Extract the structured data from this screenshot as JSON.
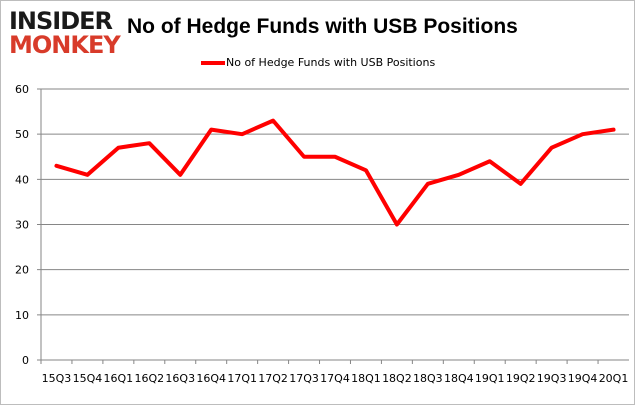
{
  "logo": {
    "line1": "INSIDER",
    "line2": "MONKEY"
  },
  "chart_data": {
    "type": "line",
    "title": "No of Hedge Funds with USB Positions",
    "categories": [
      "15Q3",
      "15Q4",
      "16Q1",
      "16Q2",
      "16Q3",
      "16Q4",
      "17Q1",
      "17Q2",
      "17Q3",
      "17Q4",
      "18Q1",
      "18Q2",
      "18Q3",
      "18Q4",
      "19Q1",
      "19Q2",
      "19Q3",
      "19Q4",
      "20Q1"
    ],
    "series": [
      {
        "name": "No of Hedge Funds with USB Positions",
        "color": "#ff0000",
        "values": [
          43,
          41,
          47,
          48,
          41,
          51,
          50,
          53,
          45,
          45,
          42,
          30,
          39,
          41,
          44,
          39,
          47,
          50,
          51
        ]
      }
    ],
    "ylim": [
      0,
      60
    ],
    "yticks": [
      0,
      10,
      20,
      30,
      40,
      50,
      60
    ],
    "grid": true,
    "legend": "top"
  }
}
